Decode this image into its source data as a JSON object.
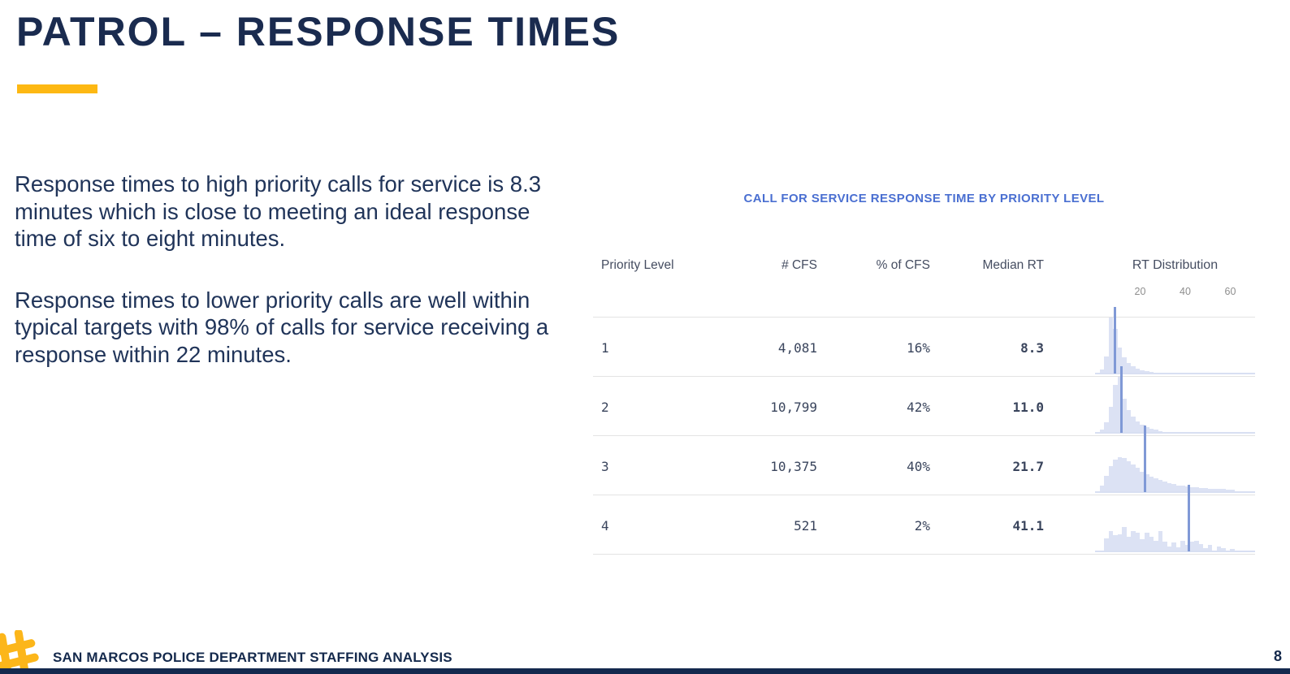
{
  "slide": {
    "title": "PATROL – RESPONSE TIMES",
    "accent_color": "#FDB813",
    "navy_color": "#1A2B4F"
  },
  "body": {
    "paragraph1": "Response times to high priority calls for service is 8.3 minutes which is close to meeting an ideal response time of six to eight minutes.",
    "paragraph2": "Response times to lower priority calls are well within typical targets with 98% of calls for service receiving a response within 22 minutes."
  },
  "chart_data": {
    "type": "table",
    "title": "CALL FOR SERVICE RESPONSE TIME BY PRIORITY LEVEL",
    "title_color": "#4A6FD1",
    "columns": [
      "Priority Level",
      "# CFS",
      "% of CFS",
      "Median RT",
      "RT Distribution"
    ],
    "axis": {
      "ticks": [
        "20",
        "40",
        "60"
      ],
      "tick_values": [
        20,
        40,
        60
      ],
      "range": [
        0,
        71
      ],
      "unit": "minutes"
    },
    "colors": {
      "bar_fill": "#DCE2F4",
      "median_line": "#8099D6",
      "baseline": "#D8DFF2",
      "separator": "#E3E3E3"
    },
    "rows": [
      {
        "priority": "1",
        "cfs": "4,081",
        "pct_of_cfs": "16%",
        "median_rt": "8.3",
        "median_value": 8.3,
        "hist": {
          "bin_start": 2,
          "bin_width": 2,
          "heights": [
            0.06,
            0.3,
            1.0,
            0.8,
            0.45,
            0.28,
            0.18,
            0.12,
            0.08,
            0.05,
            0.03,
            0.02
          ]
        }
      },
      {
        "priority": "2",
        "cfs": "10,799",
        "pct_of_cfs": "42%",
        "median_rt": "11.0",
        "median_value": 11.0,
        "hist": {
          "bin_start": 2,
          "bin_width": 2,
          "heights": [
            0.05,
            0.18,
            0.45,
            0.85,
            1.0,
            0.6,
            0.4,
            0.28,
            0.19,
            0.13,
            0.09,
            0.06,
            0.04,
            0.02
          ]
        }
      },
      {
        "priority": "3",
        "cfs": "10,375",
        "pct_of_cfs": "40%",
        "median_rt": "21.7",
        "median_value": 21.7,
        "hist": {
          "bin_start": 2,
          "bin_width": 2,
          "heights": [
            0.1,
            0.28,
            0.45,
            0.58,
            0.62,
            0.6,
            0.55,
            0.48,
            0.42,
            0.36,
            0.31,
            0.27,
            0.23,
            0.2,
            0.17,
            0.15,
            0.13,
            0.11,
            0.1,
            0.09,
            0.08,
            0.07,
            0.06,
            0.06,
            0.05,
            0.05,
            0.04,
            0.04,
            0.03,
            0.03
          ]
        }
      },
      {
        "priority": "4",
        "cfs": "521",
        "pct_of_cfs": "2%",
        "median_rt": "41.1",
        "median_value": 41.1,
        "hist": {
          "bin_start": 2,
          "bin_width": 2,
          "heights": [
            0.0,
            0.22,
            0.35,
            0.28,
            0.3,
            0.42,
            0.25,
            0.35,
            0.33,
            0.2,
            0.32,
            0.25,
            0.18,
            0.36,
            0.16,
            0.08,
            0.14,
            0.06,
            0.18,
            0.1,
            0.16,
            0.18,
            0.12,
            0.04,
            0.1,
            0.0,
            0.07,
            0.05,
            0.0,
            0.03
          ]
        }
      }
    ]
  },
  "footer": {
    "logo": "hashtag-icon",
    "text": "SAN MARCOS POLICE DEPARTMENT STAFFING ANALYSIS",
    "page_number": "8"
  }
}
